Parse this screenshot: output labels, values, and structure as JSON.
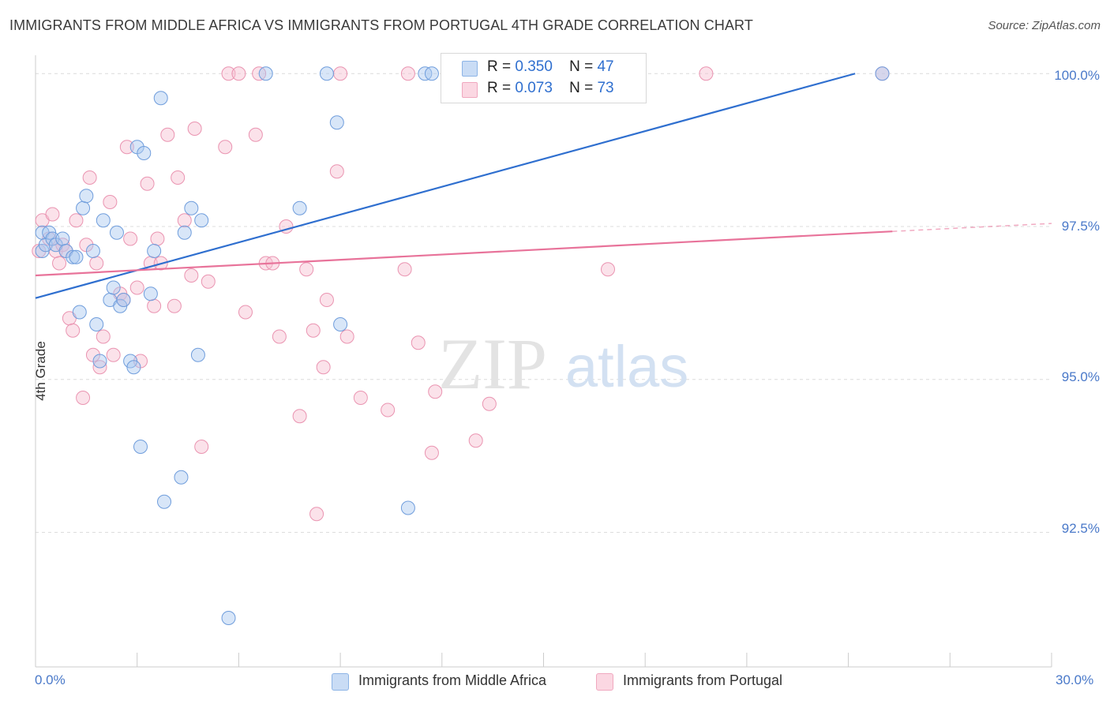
{
  "title": "IMMIGRANTS FROM MIDDLE AFRICA VS IMMIGRANTS FROM PORTUGAL 4TH GRADE CORRELATION CHART",
  "source": "Source: ZipAtlas.com",
  "watermark": {
    "zip": "ZIP",
    "atlas": "atlas"
  },
  "legend": {
    "r_label": "R =",
    "n_label": "N =",
    "entries": [
      {
        "r": "0.350",
        "n": "47",
        "color": "#a9c8f0"
      },
      {
        "r": "0.073",
        "n": "73",
        "color": "#f7bfd0"
      }
    ]
  },
  "bottom_legend": [
    {
      "label": "Immigrants from Middle Africa",
      "color": "#a9c8f0"
    },
    {
      "label": "Immigrants from Portugal",
      "color": "#f7bfd0"
    }
  ],
  "colors": {
    "blue": "#2f6fcf",
    "pink": "#e8739a",
    "blue_fill": "#a9c8f0",
    "pink_fill": "#f7bfd0",
    "tick_text": "#4a79c9"
  },
  "chart_data": {
    "type": "scatter",
    "title": "IMMIGRANTS FROM MIDDLE AFRICA VS IMMIGRANTS FROM PORTUGAL 4TH GRADE CORRELATION CHART",
    "xlabel": "",
    "ylabel": "4th Grade",
    "xlim": [
      0,
      30
    ],
    "ylim": [
      90.3,
      100.3
    ],
    "x_tick_labels": [
      "0.0%",
      "30.0%"
    ],
    "y_ticks": [
      92.5,
      95.0,
      97.5,
      100.0
    ],
    "y_tick_labels": [
      "92.5%",
      "95.0%",
      "97.5%",
      "100.0%"
    ],
    "grid": true,
    "legend_position": "top-center",
    "series": [
      {
        "name": "Immigrants from Middle Africa",
        "color": "#2f6fcf",
        "trend": {
          "x": [
            0,
            24.2
          ],
          "y": [
            96.33,
            100.0
          ]
        },
        "points": [
          [
            0.2,
            97.1
          ],
          [
            0.2,
            97.4
          ],
          [
            0.3,
            97.2
          ],
          [
            0.4,
            97.4
          ],
          [
            0.5,
            97.3
          ],
          [
            0.6,
            97.2
          ],
          [
            0.8,
            97.3
          ],
          [
            0.9,
            97.1
          ],
          [
            1.1,
            97.0
          ],
          [
            1.2,
            97.0
          ],
          [
            1.3,
            96.1
          ],
          [
            1.4,
            97.8
          ],
          [
            1.5,
            98.0
          ],
          [
            1.7,
            97.1
          ],
          [
            1.8,
            95.9
          ],
          [
            1.9,
            95.3
          ],
          [
            2.0,
            97.6
          ],
          [
            2.2,
            96.3
          ],
          [
            2.3,
            96.5
          ],
          [
            2.4,
            97.4
          ],
          [
            2.5,
            96.2
          ],
          [
            2.6,
            96.3
          ],
          [
            2.8,
            95.3
          ],
          [
            2.9,
            95.2
          ],
          [
            3.0,
            98.8
          ],
          [
            3.1,
            93.9
          ],
          [
            3.2,
            98.7
          ],
          [
            3.4,
            96.4
          ],
          [
            3.5,
            97.1
          ],
          [
            3.7,
            99.6
          ],
          [
            3.8,
            93.0
          ],
          [
            4.3,
            93.4
          ],
          [
            4.4,
            97.4
          ],
          [
            4.6,
            97.8
          ],
          [
            4.8,
            95.4
          ],
          [
            4.9,
            97.6
          ],
          [
            5.7,
            91.1
          ],
          [
            6.8,
            100.0
          ],
          [
            7.8,
            97.8
          ],
          [
            8.6,
            100.0
          ],
          [
            8.9,
            99.2
          ],
          [
            9.0,
            95.9
          ],
          [
            11.0,
            92.9
          ],
          [
            11.5,
            100.0
          ],
          [
            11.7,
            100.0
          ],
          [
            12.2,
            100.0
          ],
          [
            25.0,
            100.0
          ]
        ]
      },
      {
        "name": "Immigrants from Portugal",
        "color": "#e8739a",
        "trend": {
          "x": [
            0,
            25.3
          ],
          "y": [
            96.7,
            97.42
          ]
        },
        "trend_dashed": {
          "x": [
            25.3,
            30
          ],
          "y": [
            97.42,
            97.55
          ]
        },
        "points": [
          [
            0.1,
            97.1
          ],
          [
            0.2,
            97.6
          ],
          [
            0.4,
            97.3
          ],
          [
            0.5,
            97.7
          ],
          [
            0.6,
            97.1
          ],
          [
            0.7,
            96.9
          ],
          [
            0.8,
            97.2
          ],
          [
            0.9,
            97.1
          ],
          [
            1.0,
            96.0
          ],
          [
            1.1,
            95.8
          ],
          [
            1.2,
            97.6
          ],
          [
            1.4,
            94.7
          ],
          [
            1.5,
            97.2
          ],
          [
            1.6,
            98.3
          ],
          [
            1.7,
            95.4
          ],
          [
            1.8,
            96.9
          ],
          [
            1.9,
            95.2
          ],
          [
            2.0,
            95.7
          ],
          [
            2.2,
            97.9
          ],
          [
            2.3,
            95.4
          ],
          [
            2.5,
            96.4
          ],
          [
            2.6,
            96.3
          ],
          [
            2.7,
            98.8
          ],
          [
            2.8,
            97.3
          ],
          [
            3.0,
            96.5
          ],
          [
            3.1,
            95.3
          ],
          [
            3.3,
            98.2
          ],
          [
            3.4,
            96.9
          ],
          [
            3.5,
            96.2
          ],
          [
            3.6,
            97.3
          ],
          [
            3.7,
            96.9
          ],
          [
            3.9,
            99.0
          ],
          [
            4.1,
            96.2
          ],
          [
            4.2,
            98.3
          ],
          [
            4.4,
            97.6
          ],
          [
            4.6,
            96.7
          ],
          [
            4.7,
            99.1
          ],
          [
            4.9,
            93.9
          ],
          [
            5.1,
            96.6
          ],
          [
            5.6,
            98.8
          ],
          [
            5.7,
            100.0
          ],
          [
            6.0,
            100.0
          ],
          [
            6.2,
            96.1
          ],
          [
            6.5,
            99.0
          ],
          [
            6.6,
            100.0
          ],
          [
            6.8,
            96.9
          ],
          [
            7.0,
            96.9
          ],
          [
            7.2,
            95.7
          ],
          [
            7.4,
            97.5
          ],
          [
            7.8,
            94.4
          ],
          [
            8.0,
            96.8
          ],
          [
            8.2,
            95.8
          ],
          [
            8.3,
            92.8
          ],
          [
            8.5,
            95.2
          ],
          [
            8.6,
            96.3
          ],
          [
            8.9,
            98.4
          ],
          [
            9.0,
            100.0
          ],
          [
            9.2,
            95.7
          ],
          [
            9.6,
            94.7
          ],
          [
            10.4,
            94.5
          ],
          [
            10.9,
            96.8
          ],
          [
            11.0,
            100.0
          ],
          [
            11.3,
            95.6
          ],
          [
            11.7,
            93.8
          ],
          [
            11.8,
            94.8
          ],
          [
            13.0,
            94.0
          ],
          [
            13.4,
            94.6
          ],
          [
            13.7,
            100.0
          ],
          [
            14.3,
            100.0
          ],
          [
            16.6,
            100.0
          ],
          [
            16.9,
            96.8
          ],
          [
            19.8,
            100.0
          ],
          [
            25.0,
            100.0
          ]
        ]
      }
    ]
  }
}
